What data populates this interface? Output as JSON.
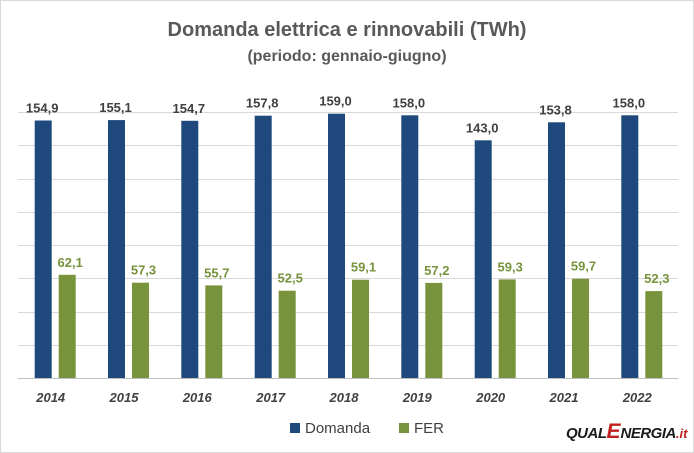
{
  "chart_data": {
    "type": "bar",
    "title": "Domanda elettrica e rinnovabili (TWh)",
    "subtitle": "(periodo: gennaio-giugno)",
    "categories": [
      "2014",
      "2015",
      "2016",
      "2017",
      "2018",
      "2019",
      "2020",
      "2021",
      "2022"
    ],
    "series": [
      {
        "name": "Domanda",
        "values": [
          154.9,
          155.1,
          154.7,
          157.8,
          159.0,
          158.0,
          143.0,
          153.8,
          158.0
        ],
        "labels": [
          "154,9",
          "155,1",
          "154,7",
          "157,8",
          "159,0",
          "158,0",
          "143,0",
          "153,8",
          "158,0"
        ],
        "color": "#1f497d"
      },
      {
        "name": "FER",
        "values": [
          62.1,
          57.3,
          55.7,
          52.5,
          59.1,
          57.2,
          59.3,
          59.7,
          52.3
        ],
        "labels": [
          "62,1",
          "57,3",
          "55,7",
          "52,5",
          "59,1",
          "57,2",
          "59,3",
          "59,7",
          "52,3"
        ],
        "color": "#77933c"
      }
    ],
    "ylim": [
      0,
      160
    ],
    "grid": true,
    "legend_position": "bottom"
  },
  "logo": {
    "part1": "QUAL",
    "part2": "E",
    "part3": "NERGIA",
    "part4": ".it"
  }
}
